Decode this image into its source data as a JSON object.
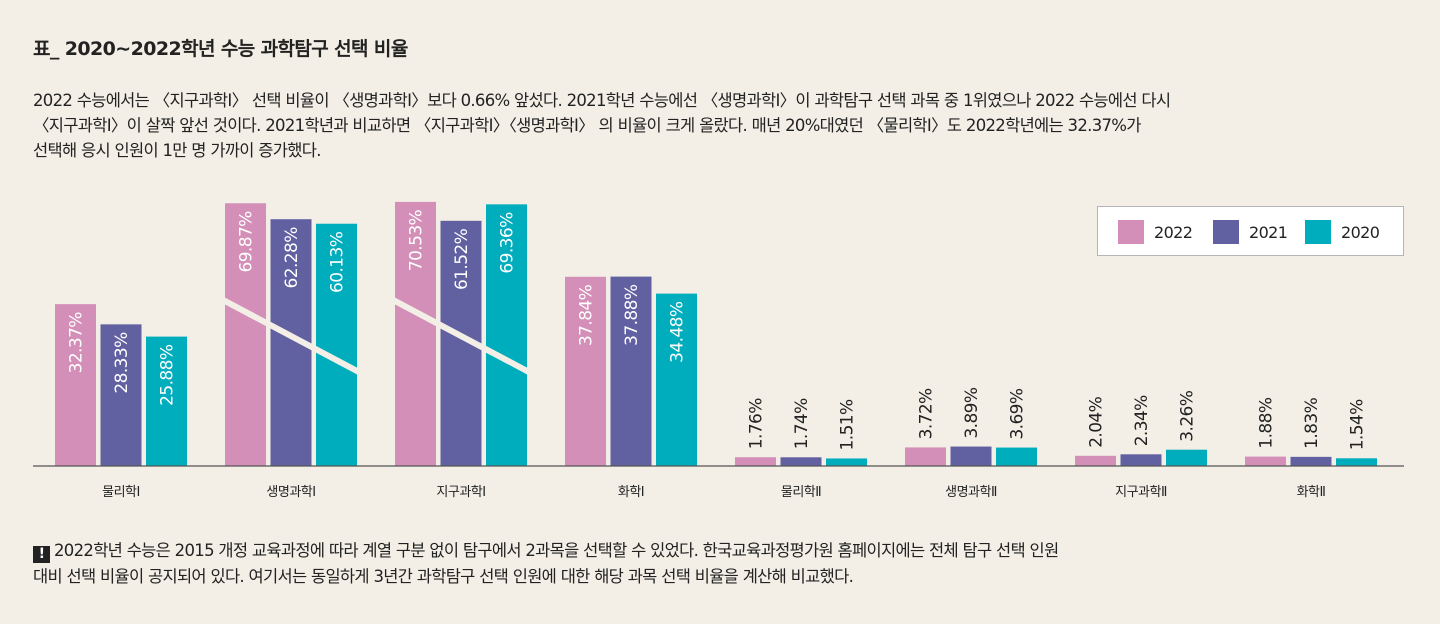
{
  "title": "표_ 2020∼2022학년 수능 과학탐구 선택 비율",
  "description": [
    "2022 수능에서는 〈지구과학Ⅰ〉 선택 비율이 〈생명과학Ⅰ〉보다 0.66% 앞섰다. 2021학년 수능에선 〈생명과학Ⅰ〉이 과학탐구 선택 과목 중 1위였으나 2022 수능에선 다시",
    "〈지구과학Ⅰ〉이 살짝 앞선 것이다. 2021학년과 비교하면 〈지구과학Ⅰ〉〈생명과학Ⅰ〉 의 비율이 크게 올랐다. 매년 20%대였던 〈물리학Ⅰ〉도 2022학년에는 32.37%가",
    "선택해 응시 인원이 1만 명 가까이 증가했다."
  ],
  "legend": {
    "items": [
      {
        "label": "2022",
        "color": "#d48fb8"
      },
      {
        "label": "2021",
        "color": "#6160a1"
      },
      {
        "label": "2020",
        "color": "#00adbd"
      }
    ]
  },
  "chart_data": {
    "type": "bar",
    "title": "2020∼2022학년 수능 과학탐구 선택 비율",
    "categories": [
      "물리학Ⅰ",
      "생명과학Ⅰ",
      "지구과학Ⅰ",
      "화학Ⅰ",
      "물리학Ⅱ",
      "생명과학Ⅱ",
      "지구과학Ⅱ",
      "화학Ⅱ"
    ],
    "series": [
      {
        "name": "2022",
        "color": "#d48fb8",
        "values": [
          32.37,
          69.87,
          70.53,
          37.84,
          1.76,
          3.72,
          2.04,
          1.88
        ]
      },
      {
        "name": "2021",
        "color": "#6160a1",
        "values": [
          28.33,
          62.28,
          61.52,
          37.88,
          1.74,
          3.89,
          2.34,
          1.83
        ]
      },
      {
        "name": "2020",
        "color": "#00adbd",
        "values": [
          25.88,
          60.13,
          69.36,
          34.48,
          1.51,
          3.69,
          3.26,
          1.54
        ]
      }
    ],
    "value_suffix": "%",
    "axis_break": true,
    "legend_position": "top-right",
    "grid": false,
    "xlabel": "",
    "ylabel": ""
  },
  "note": {
    "icon": "!",
    "lines": [
      "2022학년 수능은 2015 개정 교육과정에 따라 계열 구분 없이 탐구에서 2과목을 선택할 수 있었다. 한국교육과정평가원 홈페이지에는 전체 탐구 선택 인원",
      "대비 선택 비율이 공지되어 있다. 여기서는 동일하게 3년간 과학탐구 선택 인원에 대한 해당 과목 선택 비율을 계산해 비교했다."
    ]
  }
}
